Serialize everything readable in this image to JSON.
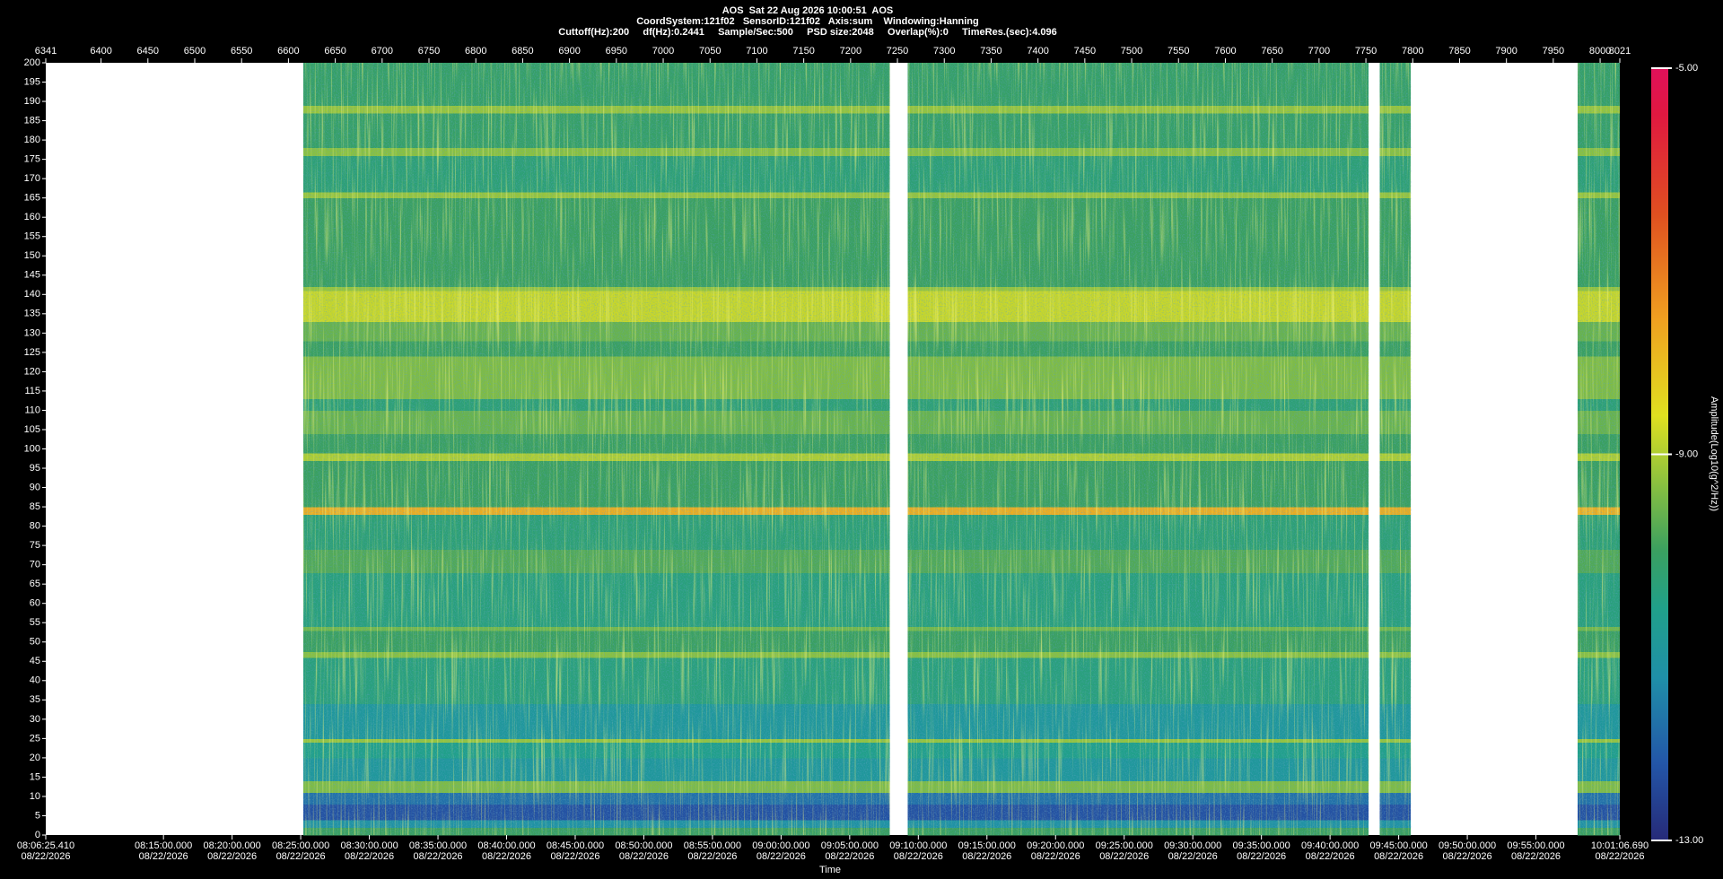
{
  "chart_data": {
    "type": "spectrogram",
    "title": "AOS  Sat 22 Aug 2026 10:00:51  AOS",
    "subtitle": [
      "CoordSystem:121f02   SensorID:121f02   Axis:sum    Windowing:Hanning",
      "Cuttoff(Hz):200     df(Hz):0.2441     Sample/Sec:500     PSD size:2048     Overlap(%):0     TimeRes.(sec):4.096"
    ],
    "x2label": "Time",
    "colorbar_label": "Amplitude(Log10(g^2/Hz))",
    "xlim": [
      6341,
      8021
    ],
    "xticks": [
      6341,
      6400,
      6450,
      6500,
      6550,
      6600,
      6650,
      6700,
      6750,
      6800,
      6850,
      6900,
      6950,
      7000,
      7050,
      7100,
      7150,
      7200,
      7250,
      7300,
      7350,
      7400,
      7450,
      7500,
      7550,
      7600,
      7650,
      7700,
      7750,
      7800,
      7850,
      7900,
      7950,
      8000,
      8021
    ],
    "x2lim": [
      29185.41,
      36066.69
    ],
    "x2ticks": [
      {
        "value": 29185.41,
        "label": "08:06:25.410",
        "date": "08/22/2026"
      },
      {
        "value": 29700,
        "label": "08:15:00.000",
        "date": "08/22/2026"
      },
      {
        "value": 30000,
        "label": "08:20:00.000",
        "date": "08/22/2026"
      },
      {
        "value": 30300,
        "label": "08:25:00.000",
        "date": "08/22/2026"
      },
      {
        "value": 30600,
        "label": "08:30:00.000",
        "date": "08/22/2026"
      },
      {
        "value": 30900,
        "label": "08:35:00.000",
        "date": "08/22/2026"
      },
      {
        "value": 31200,
        "label": "08:40:00.000",
        "date": "08/22/2026"
      },
      {
        "value": 31500,
        "label": "08:45:00.000",
        "date": "08/22/2026"
      },
      {
        "value": 31800,
        "label": "08:50:00.000",
        "date": "08/22/2026"
      },
      {
        "value": 32100,
        "label": "08:55:00.000",
        "date": "08/22/2026"
      },
      {
        "value": 32400,
        "label": "09:00:00.000",
        "date": "08/22/2026"
      },
      {
        "value": 32700,
        "label": "09:05:00.000",
        "date": "08/22/2026"
      },
      {
        "value": 33000,
        "label": "09:10:00.000",
        "date": "08/22/2026"
      },
      {
        "value": 33300,
        "label": "09:15:00.000",
        "date": "08/22/2026"
      },
      {
        "value": 33600,
        "label": "09:20:00.000",
        "date": "08/22/2026"
      },
      {
        "value": 33900,
        "label": "09:25:00.000",
        "date": "08/22/2026"
      },
      {
        "value": 34200,
        "label": "09:30:00.000",
        "date": "08/22/2026"
      },
      {
        "value": 34500,
        "label": "09:35:00.000",
        "date": "08/22/2026"
      },
      {
        "value": 34800,
        "label": "09:40:00.000",
        "date": "08/22/2026"
      },
      {
        "value": 35100,
        "label": "09:45:00.000",
        "date": "08/22/2026"
      },
      {
        "value": 35400,
        "label": "09:50:00.000",
        "date": "08/22/2026"
      },
      {
        "value": 35700,
        "label": "09:55:00.000",
        "date": "08/22/2026"
      },
      {
        "value": 36066.69,
        "label": "10:01:06.690",
        "date": "08/22/2026"
      }
    ],
    "ylim": [
      0,
      200
    ],
    "yticks": [
      0,
      5,
      10,
      15,
      20,
      25,
      30,
      35,
      40,
      45,
      50,
      55,
      60,
      65,
      70,
      75,
      80,
      85,
      90,
      95,
      100,
      105,
      110,
      115,
      120,
      125,
      130,
      135,
      140,
      145,
      150,
      155,
      160,
      165,
      170,
      175,
      180,
      185,
      190,
      195,
      200
    ],
    "clim": [
      -13,
      -5
    ],
    "cticks": [
      {
        "value": -5,
        "label": "-5.00"
      },
      {
        "value": -9,
        "label": "-9.00"
      },
      {
        "value": -13,
        "label": "-13.00"
      }
    ],
    "segments": [
      [
        6616,
        7242
      ],
      [
        7261,
        7753
      ],
      [
        7765,
        7798
      ],
      [
        7976,
        8021
      ]
    ],
    "bands": [
      [
        0,
        2,
        -10.0
      ],
      [
        2,
        4,
        -11.2
      ],
      [
        4,
        8,
        -12.3
      ],
      [
        8,
        11,
        -11.8
      ],
      [
        11,
        14,
        -9.4
      ],
      [
        14,
        20,
        -11.0
      ],
      [
        20,
        24,
        -10.6
      ],
      [
        24,
        25,
        -9.2
      ],
      [
        25,
        34,
        -11.0
      ],
      [
        34,
        46,
        -10.4
      ],
      [
        46,
        47.5,
        -9.3
      ],
      [
        47.5,
        53,
        -10.0
      ],
      [
        53,
        54,
        -9.5
      ],
      [
        54,
        68,
        -10.4
      ],
      [
        68,
        74,
        -9.8
      ],
      [
        74,
        83,
        -10.3
      ],
      [
        83,
        85,
        -7.8
      ],
      [
        85,
        97,
        -10.0
      ],
      [
        97,
        99,
        -9.0
      ],
      [
        99,
        104,
        -10.0
      ],
      [
        104,
        110,
        -9.6
      ],
      [
        110,
        113,
        -10.3
      ],
      [
        113,
        124,
        -9.4
      ],
      [
        124,
        128,
        -10.0
      ],
      [
        128,
        133,
        -9.6
      ],
      [
        133,
        141,
        -8.8
      ],
      [
        141,
        142,
        -9.2
      ],
      [
        142,
        165,
        -10.0
      ],
      [
        165,
        166.5,
        -9.2
      ],
      [
        166.5,
        176,
        -10.3
      ],
      [
        176,
        178,
        -9.3
      ],
      [
        178,
        187,
        -10.1
      ],
      [
        187,
        189,
        -9.2
      ],
      [
        189,
        200,
        -10.1
      ]
    ]
  }
}
